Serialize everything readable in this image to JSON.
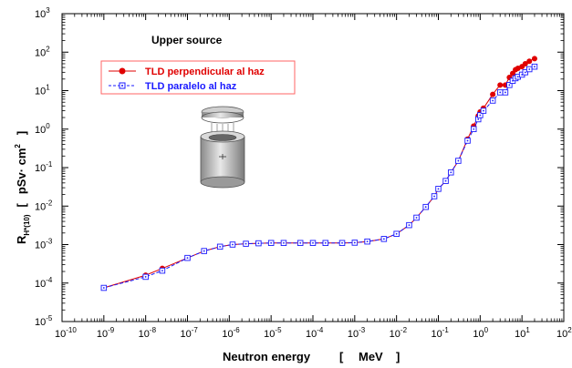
{
  "chart_data": {
    "type": "line",
    "title": "",
    "annotation": "Upper source",
    "xlabel": {
      "name": "Neutron energy",
      "unit": "MeV"
    },
    "ylabel": {
      "symbol": "R",
      "subscript": "H*(10)",
      "unit": "pSv· cm",
      "unit_exp": "2"
    },
    "xscale": "log",
    "yscale": "log",
    "xlim": [
      1e-10,
      100
    ],
    "ylim": [
      1e-05,
      1000
    ],
    "x_ticks": [
      "-10",
      "-9",
      "-8",
      "-7",
      "-6",
      "-5",
      "-4",
      "-3",
      "-2",
      "-1",
      "0",
      "1",
      "2"
    ],
    "y_ticks": [
      "-5",
      "-4",
      "-3",
      "-2",
      "-1",
      "0",
      "1",
      "2",
      "3"
    ],
    "tick_base": "10",
    "grid": false,
    "legend_position": "upper-left",
    "series": [
      {
        "name": "TLD perpendicular al haz",
        "color": "#e00000",
        "marker": "filled-circle",
        "points": [
          [
            1e-09,
            7.5e-05
          ],
          [
            1e-08,
            0.00016
          ],
          [
            2.5e-08,
            0.00024
          ],
          [
            1e-07,
            0.00045
          ],
          [
            2.5e-07,
            0.00068
          ],
          [
            6e-07,
            0.00088
          ],
          [
            1.2e-06,
            0.001
          ],
          [
            2.5e-06,
            0.00105
          ],
          [
            5e-06,
            0.00108
          ],
          [
            1e-05,
            0.0011
          ],
          [
            2e-05,
            0.0011
          ],
          [
            5e-05,
            0.0011
          ],
          [
            0.0001,
            0.0011
          ],
          [
            0.0002,
            0.0011
          ],
          [
            0.0005,
            0.0011
          ],
          [
            0.001,
            0.00112
          ],
          [
            0.002,
            0.0012
          ],
          [
            0.005,
            0.0014
          ],
          [
            0.01,
            0.0019
          ],
          [
            0.02,
            0.0032
          ],
          [
            0.03,
            0.005
          ],
          [
            0.05,
            0.0095
          ],
          [
            0.08,
            0.018
          ],
          [
            0.1,
            0.028
          ],
          [
            0.15,
            0.045
          ],
          [
            0.2,
            0.075
          ],
          [
            0.3,
            0.15
          ],
          [
            0.5,
            0.55
          ],
          [
            0.7,
            1.2
          ],
          [
            0.9,
            2.2
          ],
          [
            1.0,
            2.8
          ],
          [
            1.2,
            3.5
          ],
          [
            2.0,
            8.0
          ],
          [
            3.0,
            14.0
          ],
          [
            4.0,
            14.0
          ],
          [
            5.0,
            22.0
          ],
          [
            6.0,
            28.0
          ],
          [
            7.0,
            35.0
          ],
          [
            8.0,
            38.0
          ],
          [
            10.0,
            42.0
          ],
          [
            12.0,
            50.0
          ],
          [
            15.0,
            58.0
          ],
          [
            20.0,
            68.0
          ]
        ]
      },
      {
        "name": "TLD paralelo al haz",
        "color": "#1a1aff",
        "marker": "open-square-dot",
        "points": [
          [
            1e-09,
            7.5e-05
          ],
          [
            1e-08,
            0.000145
          ],
          [
            2.5e-08,
            0.00021
          ],
          [
            1e-07,
            0.00045
          ],
          [
            2.5e-07,
            0.00068
          ],
          [
            6e-07,
            0.00088
          ],
          [
            1.2e-06,
            0.001
          ],
          [
            2.5e-06,
            0.00105
          ],
          [
            5e-06,
            0.00108
          ],
          [
            1e-05,
            0.0011
          ],
          [
            2e-05,
            0.0011
          ],
          [
            5e-05,
            0.0011
          ],
          [
            0.0001,
            0.0011
          ],
          [
            0.0002,
            0.0011
          ],
          [
            0.0005,
            0.0011
          ],
          [
            0.001,
            0.00112
          ],
          [
            0.002,
            0.0012
          ],
          [
            0.005,
            0.0014
          ],
          [
            0.01,
            0.0019
          ],
          [
            0.02,
            0.0032
          ],
          [
            0.03,
            0.005
          ],
          [
            0.05,
            0.0095
          ],
          [
            0.08,
            0.018
          ],
          [
            0.1,
            0.028
          ],
          [
            0.15,
            0.045
          ],
          [
            0.2,
            0.075
          ],
          [
            0.3,
            0.15
          ],
          [
            0.5,
            0.5
          ],
          [
            0.7,
            1.0
          ],
          [
            0.9,
            1.8
          ],
          [
            1.0,
            2.3
          ],
          [
            1.2,
            3.0
          ],
          [
            2.0,
            5.5
          ],
          [
            3.0,
            9.0
          ],
          [
            4.0,
            9.0
          ],
          [
            5.0,
            14.0
          ],
          [
            6.0,
            18.0
          ],
          [
            7.0,
            21.0
          ],
          [
            8.0,
            23.0
          ],
          [
            10.0,
            26.0
          ],
          [
            12.0,
            30.0
          ],
          [
            15.0,
            36.0
          ],
          [
            20.0,
            42.0
          ]
        ]
      }
    ]
  }
}
